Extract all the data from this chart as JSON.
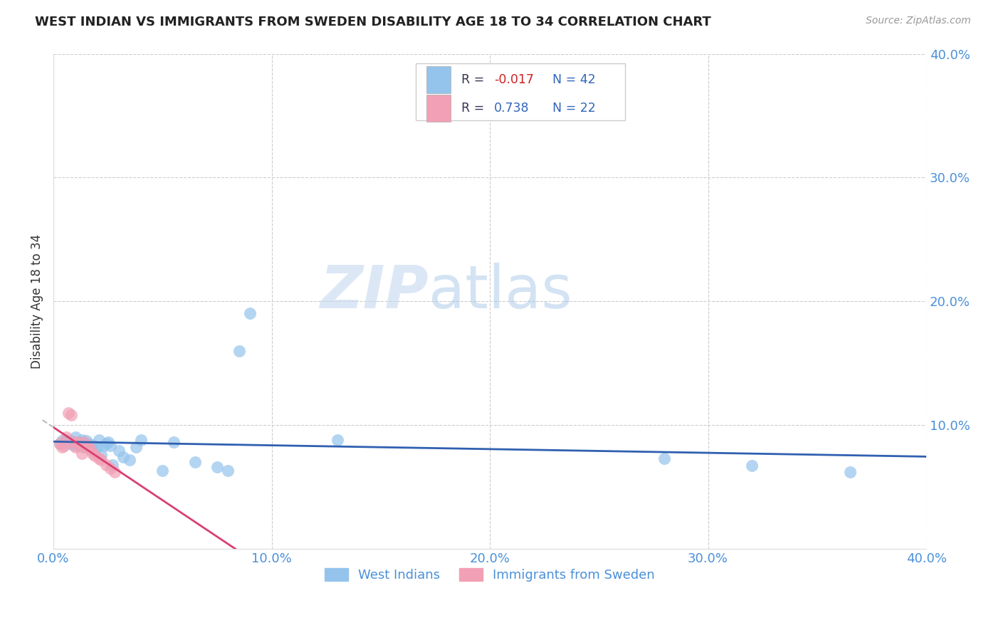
{
  "title": "WEST INDIAN VS IMMIGRANTS FROM SWEDEN DISABILITY AGE 18 TO 34 CORRELATION CHART",
  "source": "Source: ZipAtlas.com",
  "ylabel": "Disability Age 18 to 34",
  "xlim": [
    0.0,
    0.4
  ],
  "ylim": [
    0.0,
    0.4
  ],
  "xticks": [
    0.0,
    0.1,
    0.2,
    0.3,
    0.4
  ],
  "yticks": [
    0.0,
    0.1,
    0.2,
    0.3,
    0.4
  ],
  "xtick_labels": [
    "0.0%",
    "10.0%",
    "20.0%",
    "30.0%",
    "40.0%"
  ],
  "ytick_labels": [
    "",
    "10.0%",
    "20.0%",
    "30.0%",
    "40.0%"
  ],
  "color_blue": "#94C4EC",
  "color_pink": "#F2A0B5",
  "trendline_blue_color": "#3060B0",
  "trendline_pink_color": "#D84070",
  "trendline_pink_dashed_color": "#BBBBBB",
  "watermark_zip": "ZIP",
  "watermark_atlas": "atlas",
  "background_color": "#FFFFFF",
  "grid_color": "#CCCCCC",
  "blue_scatter_x": [
    0.003,
    0.004,
    0.005,
    0.006,
    0.007,
    0.008,
    0.009,
    0.01,
    0.01,
    0.011,
    0.012,
    0.013,
    0.014,
    0.015,
    0.016,
    0.017,
    0.018,
    0.019,
    0.02,
    0.021,
    0.022,
    0.023,
    0.024,
    0.025,
    0.026,
    0.027,
    0.03,
    0.032,
    0.035,
    0.038,
    0.04,
    0.05,
    0.055,
    0.065,
    0.075,
    0.08,
    0.085,
    0.09,
    0.13,
    0.28,
    0.32,
    0.365
  ],
  "blue_scatter_y": [
    0.085,
    0.087,
    0.086,
    0.088,
    0.085,
    0.087,
    0.084,
    0.086,
    0.09,
    0.083,
    0.086,
    0.088,
    0.082,
    0.087,
    0.085,
    0.083,
    0.084,
    0.079,
    0.082,
    0.088,
    0.076,
    0.083,
    0.085,
    0.086,
    0.083,
    0.068,
    0.079,
    0.074,
    0.072,
    0.082,
    0.088,
    0.063,
    0.086,
    0.07,
    0.066,
    0.063,
    0.16,
    0.19,
    0.088,
    0.073,
    0.067,
    0.062
  ],
  "pink_scatter_x": [
    0.003,
    0.004,
    0.005,
    0.006,
    0.007,
    0.008,
    0.009,
    0.01,
    0.011,
    0.012,
    0.013,
    0.014,
    0.015,
    0.016,
    0.017,
    0.018,
    0.019,
    0.021,
    0.022,
    0.024,
    0.026,
    0.028
  ],
  "pink_scatter_y": [
    0.085,
    0.082,
    0.083,
    0.09,
    0.11,
    0.108,
    0.086,
    0.082,
    0.086,
    0.083,
    0.077,
    0.086,
    0.082,
    0.083,
    0.08,
    0.077,
    0.075,
    0.073,
    0.072,
    0.068,
    0.065,
    0.062
  ],
  "legend_r1_label": "R = ",
  "legend_r1_val": "-0.017",
  "legend_n1": "N = 42",
  "legend_r2_label": "R =  ",
  "legend_r2_val": "0.738",
  "legend_n2": "N = 22"
}
